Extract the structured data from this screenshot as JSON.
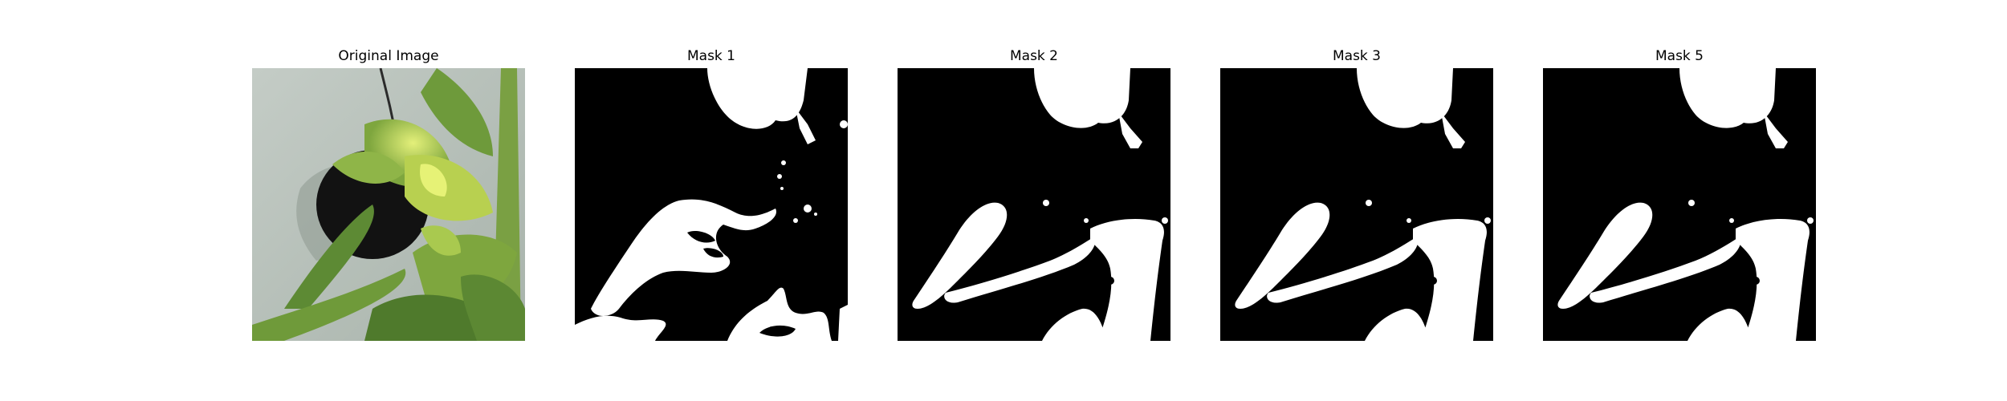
{
  "figure": {
    "panels": [
      {
        "title": "Original Image",
        "kind": "photo",
        "subject": "leaf-icon"
      },
      {
        "title": "Mask 1",
        "kind": "mask",
        "variant": "noisy"
      },
      {
        "title": "Mask 2",
        "kind": "mask",
        "variant": "clean"
      },
      {
        "title": "Mask 3",
        "kind": "mask",
        "variant": "clean"
      },
      {
        "title": "Mask 5",
        "kind": "mask",
        "variant": "clean"
      }
    ],
    "colors": {
      "mask_background": "#000000",
      "mask_foreground": "#ffffff",
      "photo_wall": "#b9c2bb",
      "leaf_light": "#c9dc5a",
      "leaf_mid": "#6f9a3a",
      "leaf_dark": "#3f6226",
      "hole": "#111111"
    }
  }
}
